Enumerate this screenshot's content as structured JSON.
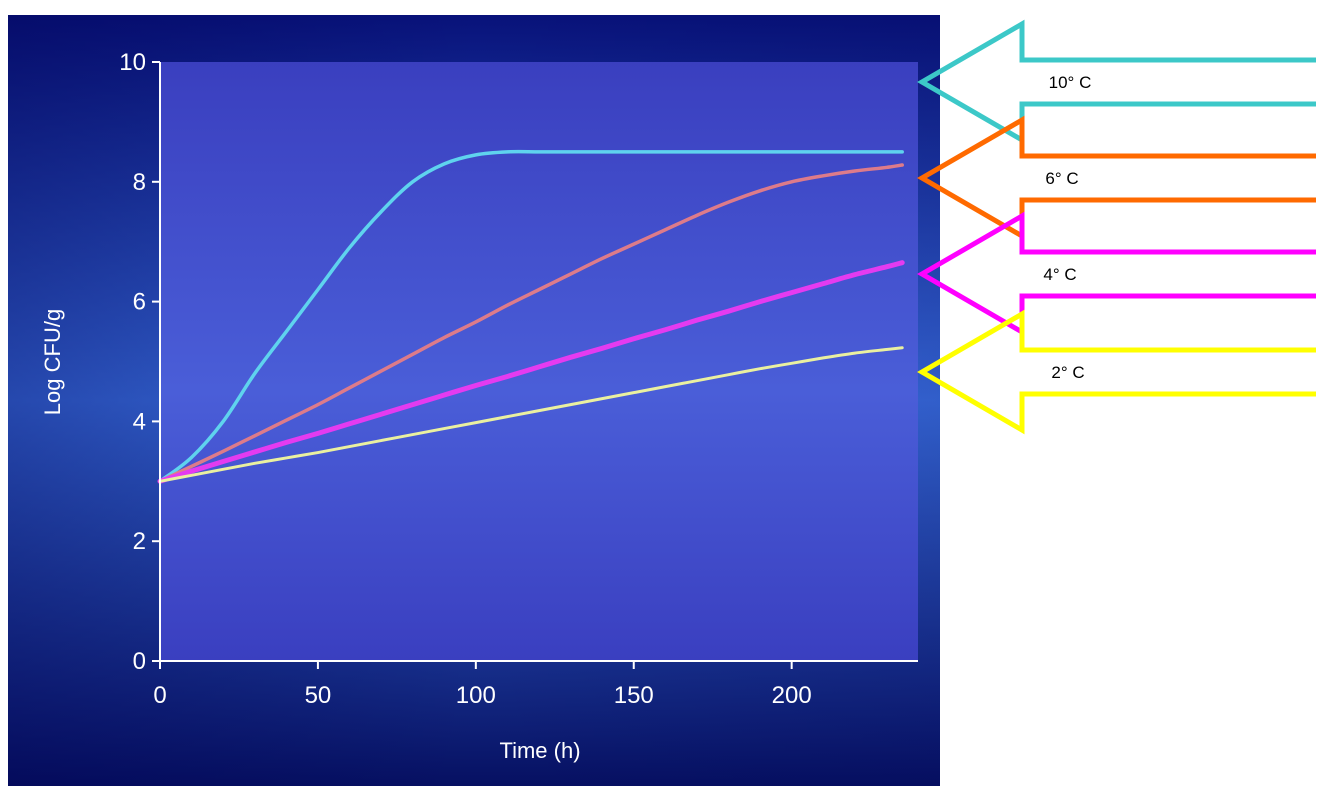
{
  "chart_data": {
    "type": "line",
    "title": "",
    "xlabel": "Time (h)",
    "ylabel": "Log CFU/g",
    "xlim": [
      0,
      240
    ],
    "ylim": [
      0,
      10
    ],
    "x_ticks": [
      0,
      50,
      100,
      150,
      200
    ],
    "y_ticks": [
      0,
      2,
      4,
      6,
      8,
      10
    ],
    "grid": false,
    "x": [
      0,
      10,
      20,
      30,
      40,
      50,
      60,
      70,
      80,
      90,
      100,
      110,
      120,
      130,
      140,
      150,
      160,
      170,
      180,
      190,
      200,
      210,
      220,
      230,
      235
    ],
    "series": [
      {
        "name": "10° C",
        "color": "#5fd3ee",
        "arrow_color": "#3cc8c8",
        "values": [
          3.0,
          3.4,
          4.0,
          4.8,
          5.5,
          6.2,
          6.9,
          7.5,
          8.0,
          8.3,
          8.45,
          8.5,
          8.5,
          8.5,
          8.5,
          8.5,
          8.5,
          8.5,
          8.5,
          8.5,
          8.5,
          8.5,
          8.5,
          8.5,
          8.5
        ]
      },
      {
        "name": "6° C",
        "color": "#dd7b8a",
        "arrow_color": "#ff6a00",
        "values": [
          3.0,
          3.25,
          3.5,
          3.76,
          4.02,
          4.28,
          4.56,
          4.84,
          5.12,
          5.4,
          5.66,
          5.94,
          6.2,
          6.46,
          6.72,
          6.96,
          7.2,
          7.44,
          7.66,
          7.85,
          8.0,
          8.1,
          8.18,
          8.24,
          8.28
        ]
      },
      {
        "name": "4° C",
        "color": "#e43bf0",
        "arrow_color": "#ff00ff",
        "values": [
          3.0,
          3.17,
          3.33,
          3.49,
          3.65,
          3.8,
          3.96,
          4.12,
          4.28,
          4.44,
          4.6,
          4.75,
          4.91,
          5.07,
          5.22,
          5.38,
          5.53,
          5.69,
          5.84,
          6.0,
          6.15,
          6.3,
          6.45,
          6.58,
          6.65
        ]
      },
      {
        "name": "2° C",
        "color": "#eaf0a0",
        "arrow_color": "#ffff00",
        "values": [
          3.0,
          3.1,
          3.2,
          3.3,
          3.39,
          3.48,
          3.58,
          3.68,
          3.78,
          3.88,
          3.98,
          4.08,
          4.18,
          4.28,
          4.38,
          4.48,
          4.58,
          4.68,
          4.78,
          4.88,
          4.97,
          5.06,
          5.14,
          5.2,
          5.23
        ]
      }
    ],
    "annotations": [
      "10° C",
      "6° C",
      "4° C",
      "2° C"
    ]
  }
}
